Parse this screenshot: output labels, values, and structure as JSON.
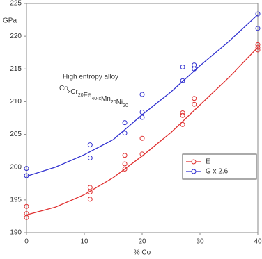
{
  "chart_data": {
    "type": "scatter",
    "y_unit_label": "GPa",
    "xlabel": "% Co",
    "annotation": "High entropy alloy",
    "annotation_formula": [
      {
        "text": "Co",
        "sub": "x"
      },
      {
        "text": "Cr",
        "sub": "20"
      },
      {
        "text": "Fe",
        "sub": "40-x"
      },
      {
        "text": "Mn",
        "sub": "20"
      },
      {
        "text": "Ni",
        "sub": "20"
      }
    ],
    "xlim": [
      0,
      40
    ],
    "xticks": [
      0,
      10,
      20,
      30,
      40
    ],
    "ylim": [
      190,
      225
    ],
    "yticks": [
      190,
      195,
      200,
      205,
      210,
      215,
      220,
      225
    ],
    "legend": "center right",
    "series": [
      {
        "name": "E",
        "color": "#e03030",
        "x": [
          0,
          0,
          0,
          11,
          11,
          11,
          17,
          17,
          17,
          20,
          20,
          27,
          27,
          27,
          29,
          29,
          40,
          40,
          40
        ],
        "values": [
          194.0,
          192.9,
          192.3,
          196.9,
          196.2,
          195.1,
          201.8,
          200.5,
          199.7,
          204.4,
          202.0,
          208.3,
          207.9,
          206.5,
          210.5,
          209.6,
          218.7,
          218.3,
          217.9
        ],
        "fit_x": [
          0,
          5,
          10,
          15,
          20,
          25,
          30,
          35,
          40
        ],
        "fit_values": [
          192.7,
          193.9,
          195.8,
          198.4,
          201.7,
          205.3,
          209.5,
          213.7,
          218.3
        ]
      },
      {
        "name": "G x 2.6",
        "color": "#3030d0",
        "x": [
          0,
          0,
          11,
          11,
          17,
          17,
          20,
          20,
          20,
          27,
          27,
          29,
          29,
          40,
          40
        ],
        "values": [
          199.8,
          198.7,
          203.4,
          201.4,
          206.8,
          205.2,
          211.1,
          208.4,
          207.6,
          215.3,
          213.2,
          215.6,
          215.0,
          223.4,
          221.2
        ],
        "fit_x": [
          0,
          5,
          10,
          15,
          20,
          25,
          30,
          35,
          40
        ],
        "fit_values": [
          198.6,
          200.0,
          201.9,
          204.2,
          208.0,
          211.5,
          215.5,
          219.2,
          223.3
        ]
      }
    ]
  }
}
